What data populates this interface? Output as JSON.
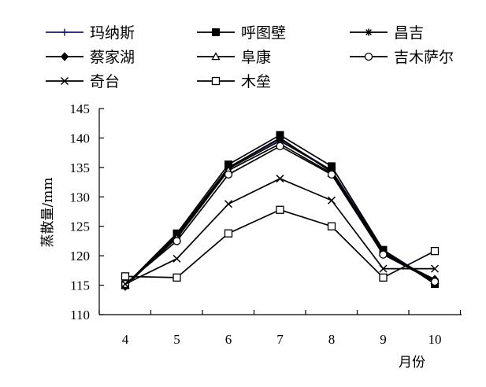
{
  "chart_data": {
    "type": "line",
    "title": "",
    "xlabel": "月份",
    "ylabel": "蒸散量/mm",
    "x": [
      4,
      5,
      6,
      7,
      8,
      9,
      10
    ],
    "ylim": [
      110,
      145
    ],
    "yticks": [
      110,
      115,
      120,
      125,
      130,
      135,
      140,
      145
    ],
    "grid": false,
    "legend_position": "top",
    "series": [
      {
        "name": "玛纳斯",
        "marker": "plus",
        "color": "#1a1a6e",
        "values": [
          115.0,
          123.0,
          135.0,
          139.8,
          134.5,
          121.0,
          115.5
        ]
      },
      {
        "name": "呼图壁",
        "marker": "filled-square",
        "color": "#000000",
        "values": [
          115.0,
          123.8,
          135.5,
          140.5,
          135.2,
          121.0,
          115.2
        ]
      },
      {
        "name": "昌吉",
        "marker": "asterisk",
        "color": "#000000",
        "values": [
          115.0,
          123.5,
          135.0,
          140.0,
          134.2,
          120.8,
          115.6
        ]
      },
      {
        "name": "蔡家湖",
        "marker": "filled-diamond",
        "color": "#000000",
        "values": [
          114.8,
          123.2,
          134.8,
          139.5,
          134.5,
          120.3,
          116.0
        ]
      },
      {
        "name": "阜康",
        "marker": "open-triangle",
        "color": "#000000",
        "values": [
          115.0,
          123.0,
          134.5,
          139.0,
          134.0,
          120.5,
          115.8
        ]
      },
      {
        "name": "吉木萨尔",
        "marker": "open-circle",
        "color": "#000000",
        "values": [
          115.2,
          122.5,
          133.8,
          138.6,
          133.8,
          120.2,
          115.6
        ]
      },
      {
        "name": "奇台",
        "marker": "x",
        "color": "#000000",
        "values": [
          115.2,
          119.5,
          128.8,
          133.1,
          129.4,
          117.8,
          117.8
        ]
      },
      {
        "name": "木垒",
        "marker": "open-square",
        "color": "#000000",
        "values": [
          116.5,
          116.3,
          123.8,
          127.8,
          125.0,
          116.3,
          120.8
        ]
      }
    ]
  }
}
